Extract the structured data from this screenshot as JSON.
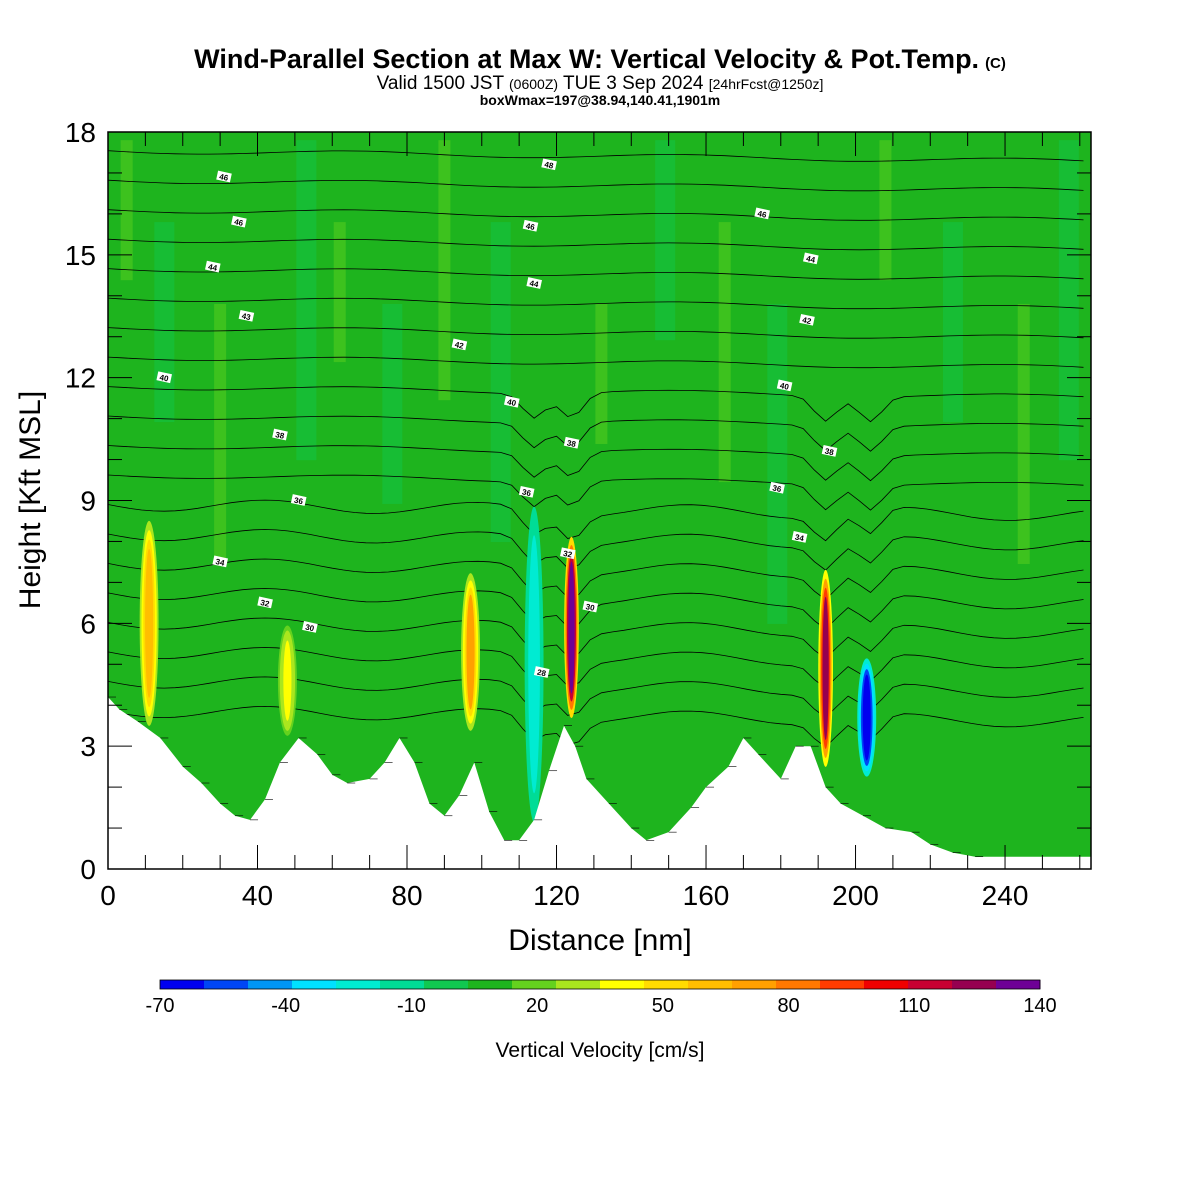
{
  "header": {
    "title": "Wind-Parallel Section at Max W: Vertical Velocity & Pot.Temp.",
    "copyright": "(C)",
    "valid_prefix": "Valid 1500 JST",
    "valid_utc": "(0600Z)",
    "valid_date": "TUE 3 Sep 2024",
    "forecast": "[24hrFcst@1250z]",
    "box_info": "boxWmax=197@38.94,140.41,1901m"
  },
  "chart_data": {
    "type": "heatmap",
    "xlabel": "Distance [nm]",
    "ylabel": "Height [Kft MSL]",
    "xlim": [
      0,
      263
    ],
    "ylim": [
      0,
      18
    ],
    "x_ticks": [
      0,
      40,
      80,
      120,
      160,
      200,
      240
    ],
    "y_ticks": [
      0,
      3,
      6,
      9,
      12,
      15,
      18
    ],
    "background_value_range": "-10 to 20",
    "colorbar": {
      "title": "Vertical Velocity [cm/s]",
      "labels": [
        "-70",
        "-40",
        "-10",
        "20",
        "50",
        "80",
        "110",
        "140"
      ],
      "levels": [
        -70,
        -60,
        -50,
        -40,
        -30,
        -20,
        -10,
        0,
        10,
        20,
        30,
        40,
        50,
        60,
        70,
        80,
        90,
        100,
        110,
        120,
        130,
        140
      ],
      "colors": [
        "#0000f0",
        "#0046f5",
        "#0096f5",
        "#00e1ff",
        "#00ebd2",
        "#00dc96",
        "#10c850",
        "#1eb41e",
        "#64d21e",
        "#aae61e",
        "#ffff00",
        "#ffdc00",
        "#ffbe00",
        "#ffa000",
        "#ff7800",
        "#ff3c00",
        "#f00000",
        "#c80032",
        "#960050",
        "#6e0096"
      ]
    },
    "terrain": [
      [
        0,
        4.2
      ],
      [
        3,
        3.9
      ],
      [
        8,
        3.6
      ],
      [
        14,
        3.2
      ],
      [
        20,
        2.5
      ],
      [
        25,
        2.1
      ],
      [
        30,
        1.6
      ],
      [
        34,
        1.3
      ],
      [
        38,
        1.2
      ],
      [
        42,
        1.7
      ],
      [
        46,
        2.6
      ],
      [
        51,
        3.2
      ],
      [
        56,
        2.8
      ],
      [
        60,
        2.3
      ],
      [
        64,
        2.1
      ],
      [
        70,
        2.2
      ],
      [
        74,
        2.6
      ],
      [
        78,
        3.2
      ],
      [
        82,
        2.6
      ],
      [
        86,
        1.6
      ],
      [
        90,
        1.3
      ],
      [
        94,
        1.8
      ],
      [
        98,
        2.6
      ],
      [
        102,
        1.4
      ],
      [
        106,
        0.7
      ],
      [
        110,
        0.7
      ],
      [
        114,
        1.2
      ],
      [
        118,
        2.4
      ],
      [
        122,
        3.5
      ],
      [
        125,
        3.0
      ],
      [
        128,
        2.2
      ],
      [
        134,
        1.6
      ],
      [
        140,
        1.0
      ],
      [
        144,
        0.7
      ],
      [
        150,
        0.9
      ],
      [
        156,
        1.5
      ],
      [
        160,
        2.0
      ],
      [
        166,
        2.5
      ],
      [
        170,
        3.2
      ],
      [
        174,
        2.8
      ],
      [
        180,
        2.2
      ],
      [
        184,
        3.0
      ],
      [
        188,
        3.0
      ],
      [
        192,
        2.0
      ],
      [
        196,
        1.6
      ],
      [
        202,
        1.3
      ],
      [
        208,
        1.0
      ],
      [
        215,
        0.9
      ],
      [
        220,
        0.6
      ],
      [
        226,
        0.4
      ],
      [
        232,
        0.3
      ],
      [
        263,
        0.3
      ]
    ],
    "vertical_velocity_features": [
      {
        "x": 11,
        "z_bottom": 3.4,
        "z_top": 8.6,
        "w": 50
      },
      {
        "x": 48,
        "z_bottom": 3.2,
        "z_top": 6.0,
        "w": 30
      },
      {
        "x": 97,
        "z_bottom": 3.3,
        "z_top": 7.3,
        "w": 60
      },
      {
        "x": 114,
        "z_bottom": 1.0,
        "z_top": 9.0,
        "w": -30
      },
      {
        "x": 124,
        "z_bottom": 3.6,
        "z_top": 8.2,
        "w": 140
      },
      {
        "x": 192,
        "z_bottom": 2.4,
        "z_top": 7.4,
        "w": 110
      },
      {
        "x": 203,
        "z_bottom": 2.2,
        "z_top": 5.2,
        "w": -70
      }
    ],
    "isentropes": [
      {
        "theta": 28,
        "label_x": 116,
        "label_z": 4.8
      },
      {
        "theta": 30,
        "label_x": 54,
        "label_z": 5.9
      },
      {
        "theta": 30,
        "label_x": 129,
        "label_z": 6.4
      },
      {
        "theta": 32,
        "label_x": 42,
        "label_z": 6.5
      },
      {
        "theta": 32,
        "label_x": 123,
        "label_z": 7.7
      },
      {
        "theta": 34,
        "label_x": 30,
        "label_z": 7.5
      },
      {
        "theta": 34,
        "label_x": 185,
        "label_z": 8.1
      },
      {
        "theta": 36,
        "label_x": 51,
        "label_z": 9.0
      },
      {
        "theta": 36,
        "label_x": 112,
        "label_z": 9.2
      },
      {
        "theta": 36,
        "label_x": 179,
        "label_z": 9.3
      },
      {
        "theta": 38,
        "label_x": 46,
        "label_z": 10.6
      },
      {
        "theta": 38,
        "label_x": 124,
        "label_z": 10.4
      },
      {
        "theta": 38,
        "label_x": 193,
        "label_z": 10.2
      },
      {
        "theta": 40,
        "label_x": 15,
        "label_z": 12.0
      },
      {
        "theta": 40,
        "label_x": 108,
        "label_z": 11.4
      },
      {
        "theta": 40,
        "label_x": 181,
        "label_z": 11.8
      },
      {
        "theta": 42,
        "label_x": 94,
        "label_z": 12.8
      },
      {
        "theta": 42,
        "label_x": 187,
        "label_z": 13.4
      },
      {
        "theta": 43,
        "label_x": 37,
        "label_z": 13.5
      },
      {
        "theta": 44,
        "label_x": 114,
        "label_z": 14.3
      },
      {
        "theta": 44,
        "label_x": 188,
        "label_z": 14.9
      },
      {
        "theta": 44,
        "label_x": 28,
        "label_z": 14.7
      },
      {
        "theta": 46,
        "label_x": 35,
        "label_z": 15.8
      },
      {
        "theta": 46,
        "label_x": 113,
        "label_z": 15.7
      },
      {
        "theta": 46,
        "label_x": 175,
        "label_z": 16.0
      },
      {
        "theta": 46,
        "label_x": 31,
        "label_z": 16.9
      },
      {
        "theta": 48,
        "label_x": 118,
        "label_z": 17.2
      }
    ]
  }
}
